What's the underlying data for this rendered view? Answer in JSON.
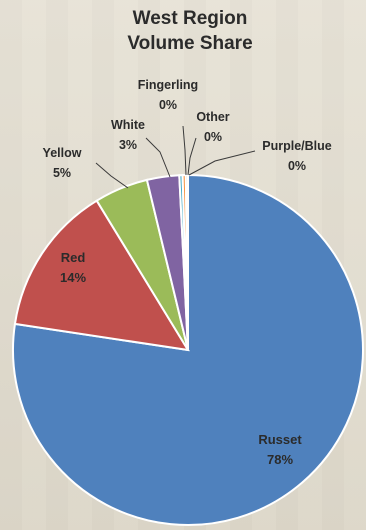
{
  "chart_data": {
    "type": "pie",
    "title_lines": [
      "West Region",
      "Volume Share"
    ],
    "slices": [
      {
        "name": "Russet",
        "value": 78,
        "label": "78%",
        "color": "#4f81bd"
      },
      {
        "name": "Red",
        "value": 14,
        "label": "14%",
        "color": "#c0504d"
      },
      {
        "name": "Yellow",
        "value": 5,
        "label": "5%",
        "color": "#9bbb59"
      },
      {
        "name": "White",
        "value": 3,
        "label": "3%",
        "color": "#8064a2"
      },
      {
        "name": "Fingerling",
        "value": 0.3,
        "label": "0%",
        "color": "#4bacc6",
        "display_name": "Fingerling"
      },
      {
        "name": "Other",
        "value": 0.3,
        "label": "0%",
        "color": "#f79646"
      },
      {
        "name": "Purple/Blue",
        "value": 0.2,
        "label": "0%",
        "color": "#c4bd97"
      }
    ]
  }
}
